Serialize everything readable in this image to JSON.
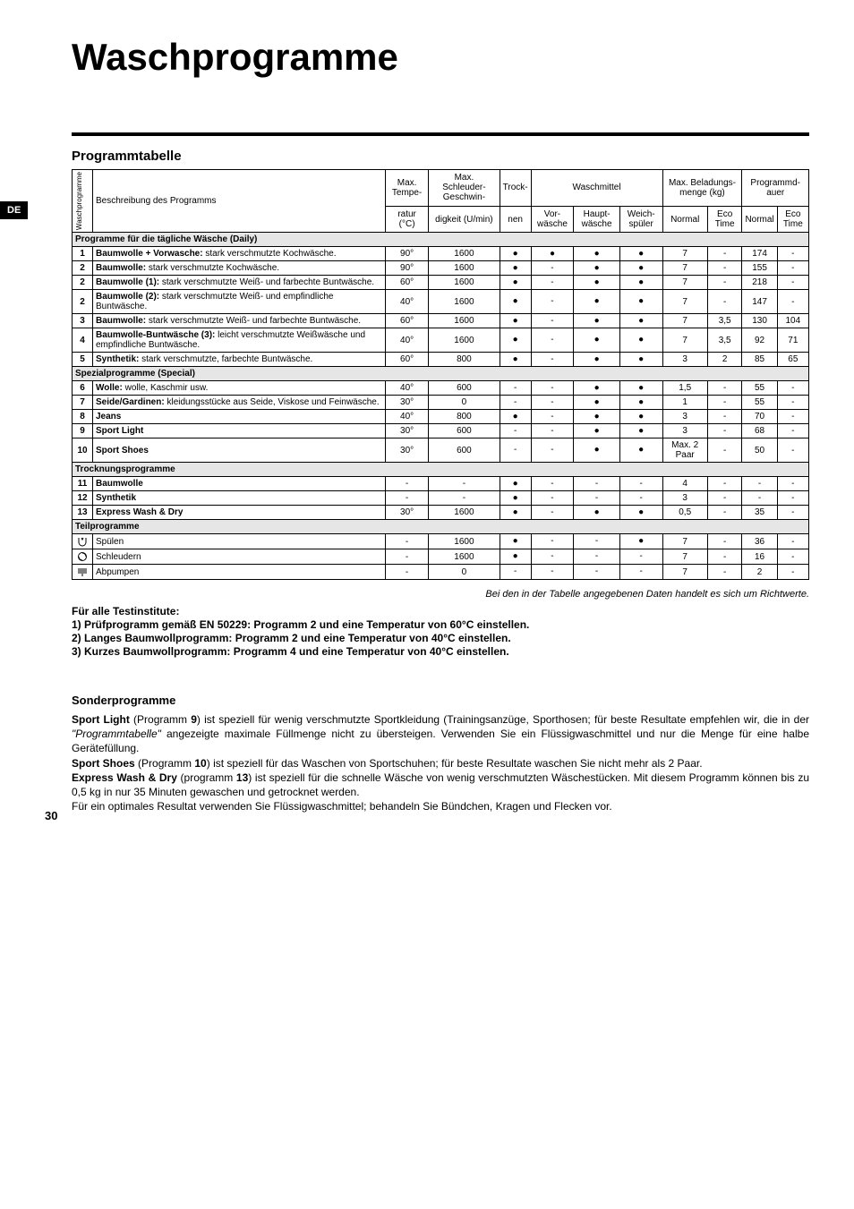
{
  "lang_badge": "DE",
  "title": "Waschprogramme",
  "subtitle": "Programmtabelle",
  "page_number": "30",
  "footnote_italic": "Bei den in der Tabelle angegebenen Daten handelt es sich um Richtwerte.",
  "test_institutes": {
    "heading": "Für alle Testinstitute:",
    "lines": [
      "1) Prüfprogramm gemäß EN 50229: Programm 2 und eine Temperatur von 60°C einstellen.",
      "2) Langes Baumwollprogramm: Programm 2 und eine Temperatur von 40°C einstellen.",
      "3) Kurzes Baumwollprogramm: Programm 4 und eine Temperatur von 40°C einstellen."
    ]
  },
  "special_heading": "Sonderprogramme",
  "special_paragraphs": [
    "<b>Sport Light</b> (Programm <b>9</b>) ist speziell für wenig verschmutzte Sportkleidung (Trainingsanzüge, Sporthosen; für beste Resultate empfehlen wir, die in der <i>\"Programmtabelle\"</i> angezeigte maximale Füllmenge nicht zu übersteigen. Verwenden Sie ein Flüssigwaschmittel und nur die Menge für eine halbe Gerätefüllung.",
    "<b>Sport Shoes</b> (Programm <b>10</b>) ist speziell für das Waschen von Sportschuhen; für beste Resultate waschen Sie nicht mehr als 2 Paar.",
    "<b>Express Wash & Dry</b> (programm <b>13</b>) ist speziell für die schnelle Wäsche von wenig verschmutzten Wäschestücken. Mit diesem Programm können bis zu 0,5 kg in nur 35 Minuten gewaschen und getrocknet werden.",
    "Für ein optimales Resultat verwenden Sie Flüssigwaschmittel; behandeln Sie Bündchen, Kragen und Flecken vor."
  ],
  "headers": {
    "vside": "Waschprogramme",
    "desc": "Beschreibung des Programms",
    "temp_top": "Max. Tempe-",
    "temp_bot": "ratur (°C)",
    "spin_top": "Max. Schleuder- Geschwin-",
    "spin_bot": "digkeit (U/min)",
    "dry_top": "Trock-",
    "dry_bot": "nen",
    "det": "Waschmittel",
    "det_pre": "Vor- wäsche",
    "det_main": "Haupt- wäsche",
    "det_soft": "Weich- spüler",
    "load": "Max. Beladungs-menge (kg)",
    "load_n": "Normal",
    "load_e": "Eco Time",
    "dur": "Programmd-auer",
    "dur_n": "Normal",
    "dur_e": "Eco Time"
  },
  "sections": [
    {
      "title": "Programme für die tägliche Wäsche (Daily)",
      "rows": [
        {
          "n": "1",
          "desc": "<b>Baumwolle + Vorwasche:</b> stark verschmutzte Kochwäsche.",
          "temp": "90°",
          "spin": "1600",
          "dry": "●",
          "pre": "●",
          "main": "●",
          "soft": "●",
          "ln": "7",
          "le": "-",
          "dn": "174",
          "de": "-"
        },
        {
          "n": "2",
          "desc": "<b>Baumwolle:</b> stark verschmutzte Kochwäsche.",
          "temp": "90°",
          "spin": "1600",
          "dry": "●",
          "pre": "-",
          "main": "●",
          "soft": "●",
          "ln": "7",
          "le": "-",
          "dn": "155",
          "de": "-"
        },
        {
          "n": "2",
          "desc": "<b>Baumwolle (1):</b> stark verschmutzte Weiß- und farbechte Buntwäsche.",
          "temp": "60°",
          "spin": "1600",
          "dry": "●",
          "pre": "-",
          "main": "●",
          "soft": "●",
          "ln": "7",
          "le": "-",
          "dn": "218",
          "de": "-"
        },
        {
          "n": "2",
          "desc": "<b>Baumwolle (2):</b> stark verschmutzte Weiß- und empfindliche Buntwäsche.",
          "temp": "40°",
          "spin": "1600",
          "dry": "●",
          "pre": "-",
          "main": "●",
          "soft": "●",
          "ln": "7",
          "le": "-",
          "dn": "147",
          "de": "-"
        },
        {
          "n": "3",
          "desc": "<b>Baumwolle:</b> stark verschmutzte Weiß- und farbechte Buntwäsche.",
          "temp": "60°",
          "spin": "1600",
          "dry": "●",
          "pre": "-",
          "main": "●",
          "soft": "●",
          "ln": "7",
          "le": "3,5",
          "dn": "130",
          "de": "104"
        },
        {
          "n": "4",
          "desc": "<b>Baumwolle-Buntwäsche (3):</b> leicht verschmutzte Weißwäsche und empfindliche Buntwäsche.",
          "temp": "40°",
          "spin": "1600",
          "dry": "●",
          "pre": "-",
          "main": "●",
          "soft": "●",
          "ln": "7",
          "le": "3,5",
          "dn": "92",
          "de": "71"
        },
        {
          "n": "5",
          "desc": "<b>Synthetik:</b> stark verschmutzte, farbechte Buntwäsche.",
          "temp": "60°",
          "spin": "800",
          "dry": "●",
          "pre": "-",
          "main": "●",
          "soft": "●",
          "ln": "3",
          "le": "2",
          "dn": "85",
          "de": "65"
        }
      ]
    },
    {
      "title": "Spezialprogramme (Special)",
      "rows": [
        {
          "n": "6",
          "desc": "<b>Wolle:</b> wolle, Kaschmir usw.",
          "temp": "40°",
          "spin": "600",
          "dry": "-",
          "pre": "-",
          "main": "●",
          "soft": "●",
          "ln": "1,5",
          "le": "-",
          "dn": "55",
          "de": "-"
        },
        {
          "n": "7",
          "desc": "<b>Seide/Gardinen:</b> kleidungsstücke aus Seide, Viskose und Feinwäsche.",
          "temp": "30°",
          "spin": "0",
          "dry": "-",
          "pre": "-",
          "main": "●",
          "soft": "●",
          "ln": "1",
          "le": "-",
          "dn": "55",
          "de": "-"
        },
        {
          "n": "8",
          "desc": "<b>Jeans</b>",
          "temp": "40°",
          "spin": "800",
          "dry": "●",
          "pre": "-",
          "main": "●",
          "soft": "●",
          "ln": "3",
          "le": "-",
          "dn": "70",
          "de": "-"
        },
        {
          "n": "9",
          "desc": "<b>Sport Light</b>",
          "temp": "30°",
          "spin": "600",
          "dry": "-",
          "pre": "-",
          "main": "●",
          "soft": "●",
          "ln": "3",
          "le": "-",
          "dn": "68",
          "de": "-"
        },
        {
          "n": "10",
          "desc": "<b>Sport Shoes</b>",
          "temp": "30°",
          "spin": "600",
          "dry": "-",
          "pre": "-",
          "main": "●",
          "soft": "●",
          "ln": "Max. 2 Paar",
          "le": "-",
          "dn": "50",
          "de": "-"
        }
      ]
    },
    {
      "title": "Trocknungsprogramme",
      "rows": [
        {
          "n": "11",
          "desc": "<b>Baumwolle</b>",
          "temp": "-",
          "spin": "-",
          "dry": "●",
          "pre": "-",
          "main": "-",
          "soft": "-",
          "ln": "4",
          "le": "-",
          "dn": "-",
          "de": "-"
        },
        {
          "n": "12",
          "desc": "<b>Synthetik</b>",
          "temp": "-",
          "spin": "-",
          "dry": "●",
          "pre": "-",
          "main": "-",
          "soft": "-",
          "ln": "3",
          "le": "-",
          "dn": "-",
          "de": "-"
        },
        {
          "n": "13",
          "desc": "<b>Express Wash & Dry</b>",
          "temp": "30°",
          "spin": "1600",
          "dry": "●",
          "pre": "-",
          "main": "●",
          "soft": "●",
          "ln": "0,5",
          "le": "-",
          "dn": "35",
          "de": "-"
        }
      ]
    },
    {
      "title": "Teilprogramme",
      "rows": [
        {
          "icon": "rinse",
          "desc": "Spülen",
          "temp": "-",
          "spin": "1600",
          "dry": "●",
          "pre": "-",
          "main": "-",
          "soft": "●",
          "ln": "7",
          "le": "-",
          "dn": "36",
          "de": "-"
        },
        {
          "icon": "spin",
          "desc": "Schleudern",
          "temp": "-",
          "spin": "1600",
          "dry": "●",
          "pre": "-",
          "main": "-",
          "soft": "-",
          "ln": "7",
          "le": "-",
          "dn": "16",
          "de": "-"
        },
        {
          "icon": "drain",
          "desc": "Abpumpen",
          "temp": "-",
          "spin": "0",
          "dry": "-",
          "pre": "-",
          "main": "-",
          "soft": "-",
          "ln": "7",
          "le": "-",
          "dn": "2",
          "de": "-"
        }
      ]
    }
  ]
}
